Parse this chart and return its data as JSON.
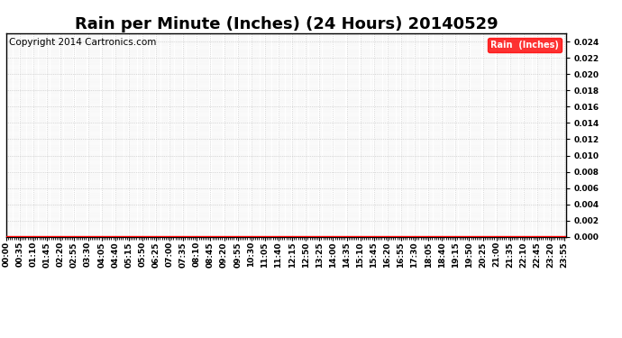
{
  "title": "Rain per Minute (Inches) (24 Hours) 20140529",
  "copyright_text": "Copyright 2014 Cartronics.com",
  "legend_label": "Rain  (Inches)",
  "legend_bg": "#ff0000",
  "legend_text_color": "#ffffff",
  "line_color": "#ff0000",
  "line_value": 0.0,
  "ylim": [
    0.0,
    0.025
  ],
  "yticks": [
    0.0,
    0.002,
    0.004,
    0.006,
    0.008,
    0.01,
    0.012,
    0.014,
    0.016,
    0.018,
    0.02,
    0.022,
    0.024
  ],
  "grid_color": "#bbbbbb",
  "grid_linestyle": ":",
  "bg_color": "#ffffff",
  "plot_bg_color": "#ffffff",
  "title_fontsize": 13,
  "tick_fontsize": 6.5,
  "copyright_fontsize": 7.5,
  "x_tick_interval_minutes": 35,
  "total_minutes": 1440
}
